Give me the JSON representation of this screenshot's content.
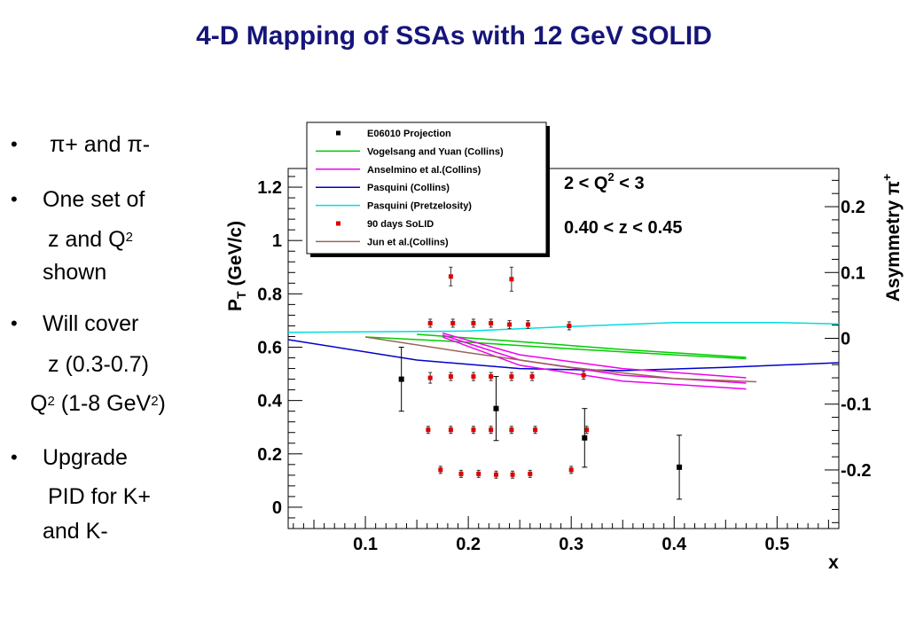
{
  "slide": {
    "title": "4-D Mapping of SSAs with 12 GeV SOLID",
    "bullets": [
      {
        "lines": [
          "π+ and π-"
        ]
      },
      {
        "lines": [
          "One set of",
          "z and Q2",
          "shown"
        ]
      },
      {
        "lines": [
          "Will cover",
          "z (0.3-0.7)",
          "Q2 (1-8 GeV2)"
        ]
      },
      {
        "lines": [
          "Upgrade",
          "PID for K+",
          "and K-"
        ]
      }
    ]
  },
  "chart_data": {
    "type": "scatter",
    "xlabel": "x",
    "ylabel": "P_T (GeV/c)",
    "y2label": "Asymmetry π+",
    "xlim": [
      0.025,
      0.56
    ],
    "ylim": [
      -0.08,
      1.27
    ],
    "y2lim": [
      -0.289,
      0.258
    ],
    "x_ticks": [
      "0.1",
      "0.2",
      "0.3",
      "0.4",
      "0.5"
    ],
    "y_ticks": [
      "0",
      "0.2",
      "0.4",
      "0.6",
      "0.8",
      "1",
      "1.2"
    ],
    "y2_ticks": [
      "-0.2",
      "-0.1",
      "0",
      "0.1",
      "0.2"
    ],
    "annotations": [
      "2 < Q2 < 3",
      "0.40 < z < 0.45"
    ],
    "legend_position": "top",
    "legend": [
      {
        "label": "E06010 Projection",
        "kind": "marker",
        "color": "#000000"
      },
      {
        "label": "Vogelsang and Yuan (Collins)",
        "kind": "line",
        "color": "#00cc00"
      },
      {
        "label": "Anselmino et al.(Collins)",
        "kind": "line",
        "color": "#ee00ee"
      },
      {
        "label": "Pasquini (Collins)",
        "kind": "line",
        "color": "#0000cc"
      },
      {
        "label": "Pasquini (Pretzelosity)",
        "kind": "line",
        "color": "#00dddd"
      },
      {
        "label": "90 days SoLID",
        "kind": "marker",
        "color": "#dd0000"
      },
      {
        "label": "Jun et al.(Collins)",
        "kind": "line",
        "color": "#996655"
      }
    ],
    "e06010": [
      {
        "x": 0.135,
        "y": 0.48,
        "err": 0.12
      },
      {
        "x": 0.227,
        "y": 0.37,
        "err": 0.12
      },
      {
        "x": 0.313,
        "y": 0.26,
        "err": 0.11
      },
      {
        "x": 0.405,
        "y": 0.15,
        "err": 0.12
      }
    ],
    "solid": [
      {
        "x": 0.163,
        "y": 0.69,
        "err": 0.015
      },
      {
        "x": 0.185,
        "y": 0.69,
        "err": 0.015
      },
      {
        "x": 0.205,
        "y": 0.69,
        "err": 0.015
      },
      {
        "x": 0.222,
        "y": 0.69,
        "err": 0.015
      },
      {
        "x": 0.24,
        "y": 0.685,
        "err": 0.015
      },
      {
        "x": 0.258,
        "y": 0.685,
        "err": 0.015
      },
      {
        "x": 0.298,
        "y": 0.68,
        "err": 0.015
      },
      {
        "x": 0.183,
        "y": 0.865,
        "err": 0.035
      },
      {
        "x": 0.242,
        "y": 0.855,
        "err": 0.045
      },
      {
        "x": 0.163,
        "y": 0.485,
        "err": 0.02
      },
      {
        "x": 0.183,
        "y": 0.49,
        "err": 0.015
      },
      {
        "x": 0.205,
        "y": 0.49,
        "err": 0.015
      },
      {
        "x": 0.222,
        "y": 0.49,
        "err": 0.015
      },
      {
        "x": 0.242,
        "y": 0.49,
        "err": 0.015
      },
      {
        "x": 0.262,
        "y": 0.49,
        "err": 0.015
      },
      {
        "x": 0.312,
        "y": 0.495,
        "err": 0.015
      },
      {
        "x": 0.161,
        "y": 0.29,
        "err": 0.008
      },
      {
        "x": 0.183,
        "y": 0.29,
        "err": 0.01
      },
      {
        "x": 0.205,
        "y": 0.29,
        "err": 0.01
      },
      {
        "x": 0.222,
        "y": 0.29,
        "err": 0.01
      },
      {
        "x": 0.242,
        "y": 0.29,
        "err": 0.01
      },
      {
        "x": 0.265,
        "y": 0.29,
        "err": 0.01
      },
      {
        "x": 0.315,
        "y": 0.29,
        "err": 0.01
      },
      {
        "x": 0.173,
        "y": 0.14,
        "err": 0.008
      },
      {
        "x": 0.193,
        "y": 0.125,
        "err": 0.008
      },
      {
        "x": 0.21,
        "y": 0.125,
        "err": 0.008
      },
      {
        "x": 0.227,
        "y": 0.122,
        "err": 0.008
      },
      {
        "x": 0.243,
        "y": 0.122,
        "err": 0.008
      },
      {
        "x": 0.26,
        "y": 0.125,
        "err": 0.008
      },
      {
        "x": 0.3,
        "y": 0.14,
        "err": 0.008
      }
    ],
    "curves_asymmetry": [
      {
        "name": "Pasquini (Pretzelosity)",
        "color": "#00dddd",
        "points": [
          [
            0.025,
            0.009
          ],
          [
            0.2,
            0.011
          ],
          [
            0.3,
            0.018
          ],
          [
            0.4,
            0.024
          ],
          [
            0.5,
            0.024
          ],
          [
            0.56,
            0.022
          ]
        ]
      },
      {
        "name": "Pasquini (Collins)",
        "color": "#0000cc",
        "points": [
          [
            0.025,
            -0.002
          ],
          [
            0.15,
            -0.033
          ],
          [
            0.25,
            -0.046
          ],
          [
            0.35,
            -0.049
          ],
          [
            0.45,
            -0.044
          ],
          [
            0.56,
            -0.037
          ]
        ]
      },
      {
        "name": "Vogelsang and Yuan (Collins)",
        "color": "#00cc00",
        "points": [
          [
            0.1,
            0.002
          ],
          [
            0.2,
            -0.006
          ],
          [
            0.3,
            -0.016
          ],
          [
            0.4,
            -0.025
          ],
          [
            0.47,
            -0.031
          ]
        ]
      },
      {
        "name": "Vogelsang and Yuan (Collins)",
        "color": "#00cc00",
        "points": [
          [
            0.15,
            0.006
          ],
          [
            0.25,
            -0.005
          ],
          [
            0.35,
            -0.017
          ],
          [
            0.47,
            -0.029
          ]
        ]
      },
      {
        "name": "Anselmino et al.(Collins)",
        "color": "#ee00ee",
        "points": [
          [
            0.175,
            0.008
          ],
          [
            0.25,
            -0.025
          ],
          [
            0.35,
            -0.046
          ],
          [
            0.47,
            -0.06
          ]
        ]
      },
      {
        "name": "Anselmino et al.(Collins)",
        "color": "#ee00ee",
        "points": [
          [
            0.175,
            0.005
          ],
          [
            0.25,
            -0.033
          ],
          [
            0.35,
            -0.056
          ],
          [
            0.47,
            -0.068
          ]
        ]
      },
      {
        "name": "Anselmino et al.(Collins)",
        "color": "#ee00ee",
        "points": [
          [
            0.175,
            0.002
          ],
          [
            0.25,
            -0.041
          ],
          [
            0.35,
            -0.065
          ],
          [
            0.47,
            -0.077
          ]
        ]
      },
      {
        "name": "Jun et al.(Collins)",
        "color": "#996655",
        "points": [
          [
            0.1,
            0.002
          ],
          [
            0.2,
            -0.022
          ],
          [
            0.3,
            -0.044
          ],
          [
            0.4,
            -0.061
          ],
          [
            0.48,
            -0.066
          ]
        ]
      }
    ]
  }
}
